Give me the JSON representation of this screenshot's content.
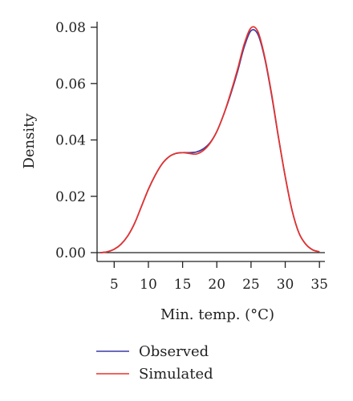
{
  "chart_data": {
    "type": "line",
    "xlabel": "Min. temp. (°C)",
    "ylabel": "Density",
    "xlim": [
      2.5,
      35.8
    ],
    "ylim": [
      0,
      0.08
    ],
    "x_ticks": [
      5,
      10,
      15,
      20,
      25,
      30,
      35
    ],
    "y_ticks": [
      "0.00",
      "0.02",
      "0.04",
      "0.06",
      "0.08"
    ],
    "grid": false,
    "legend_position": "bottom",
    "baseline_at_zero": true,
    "x": [
      3,
      4,
      5,
      6,
      7,
      8,
      9,
      10,
      11,
      12,
      13,
      14,
      15,
      16,
      17,
      18,
      19,
      20,
      21,
      22,
      23,
      24,
      25,
      26,
      27,
      28,
      29,
      30,
      31,
      32,
      33,
      34,
      35
    ],
    "series": [
      {
        "name": "Observed",
        "color": "#3a3aa8",
        "values": [
          0,
          0.0003,
          0.0012,
          0.003,
          0.006,
          0.0105,
          0.0165,
          0.0225,
          0.0275,
          0.0315,
          0.034,
          0.0352,
          0.0355,
          0.0355,
          0.0357,
          0.0368,
          0.039,
          0.043,
          0.049,
          0.056,
          0.064,
          0.073,
          0.0788,
          0.0775,
          0.069,
          0.056,
          0.041,
          0.027,
          0.015,
          0.007,
          0.003,
          0.001,
          0.0003
        ]
      },
      {
        "name": "Simulated",
        "color": "#e8322a",
        "values": [
          0,
          0.0003,
          0.0012,
          0.003,
          0.006,
          0.0105,
          0.0165,
          0.0225,
          0.0275,
          0.0315,
          0.034,
          0.0352,
          0.0355,
          0.0352,
          0.035,
          0.0362,
          0.0388,
          0.043,
          0.049,
          0.0565,
          0.0648,
          0.074,
          0.0798,
          0.0785,
          0.0695,
          0.0565,
          0.0412,
          0.027,
          0.015,
          0.007,
          0.003,
          0.001,
          0.0003
        ]
      }
    ]
  }
}
